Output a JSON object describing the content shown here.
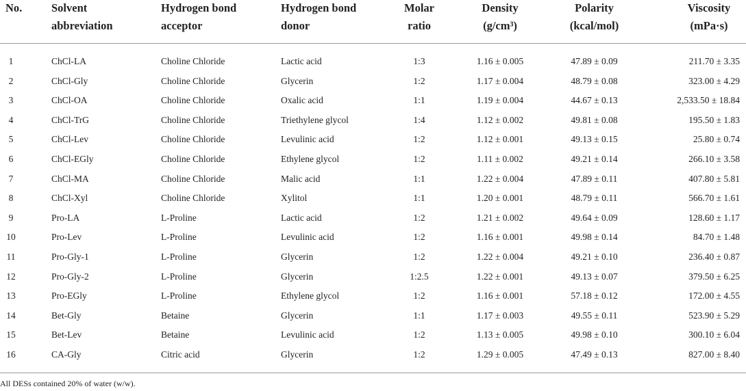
{
  "table": {
    "headers": [
      [
        "No."
      ],
      [
        "Solvent",
        "abbreviation"
      ],
      [
        "Hydrogen bond",
        "acceptor"
      ],
      [
        "Hydrogen bond",
        "donor"
      ],
      [
        "Molar",
        "ratio"
      ],
      [
        "Density",
        "(g/cm³)"
      ],
      [
        "Polarity",
        "(kcal/mol)"
      ],
      [
        "Viscosity",
        "(mPa·s)"
      ]
    ],
    "rows": [
      [
        "1",
        "ChCl-LA",
        "Choline Chloride",
        "Lactic acid",
        "1:3",
        "1.16 ± 0.005",
        "47.89 ± 0.09",
        "211.70 ± 3.35"
      ],
      [
        "2",
        "ChCl-Gly",
        "Choline Chloride",
        "Glycerin",
        "1:2",
        "1.17 ± 0.004",
        "48.79 ± 0.08",
        "323.00 ± 4.29"
      ],
      [
        "3",
        "ChCl-OA",
        "Choline Chloride",
        "Oxalic acid",
        "1:1",
        "1.19 ± 0.004",
        "44.67 ± 0.13",
        "2,533.50 ± 18.84"
      ],
      [
        "4",
        "ChCl-TrG",
        "Choline Chloride",
        "Triethylene glycol",
        "1:4",
        "1.12 ± 0.002",
        "49.81 ± 0.08",
        "195.50 ± 1.83"
      ],
      [
        "5",
        "ChCl-Lev",
        "Choline Chloride",
        "Levulinic acid",
        "1:2",
        "1.12 ± 0.001",
        "49.13 ± 0.15",
        "25.80 ± 0.74"
      ],
      [
        "6",
        "ChCl-EGly",
        "Choline Chloride",
        "Ethylene glycol",
        "1:2",
        "1.11 ± 0.002",
        "49.21 ± 0.14",
        "266.10 ± 3.58"
      ],
      [
        "7",
        "ChCl-MA",
        "Choline Chloride",
        "Malic acid",
        "1:1",
        "1.22 ± 0.004",
        "47.89 ± 0.11",
        "407.80 ± 5.81"
      ],
      [
        "8",
        "ChCl-Xyl",
        "Choline Chloride",
        "Xylitol",
        "1:1",
        "1.20 ± 0.001",
        "48.79 ± 0.11",
        "566.70 ± 1.61"
      ],
      [
        "9",
        "Pro-LA",
        "L-Proline",
        "Lactic acid",
        "1:2",
        "1.21 ± 0.002",
        "49.64 ± 0.09",
        "128.60 ± 1.17"
      ],
      [
        "10",
        "Pro-Lev",
        "L-Proline",
        "Levulinic acid",
        "1:2",
        "1.16 ± 0.001",
        "49.98 ± 0.14",
        "84.70 ± 1.48"
      ],
      [
        "11",
        "Pro-Gly-1",
        "L-Proline",
        "Glycerin",
        "1:2",
        "1.22 ± 0.004",
        "49.21 ± 0.10",
        "236.40 ± 0.87"
      ],
      [
        "12",
        "Pro-Gly-2",
        "L-Proline",
        "Glycerin",
        "1:2.5",
        "1.22 ± 0.001",
        "49.13 ± 0.07",
        "379.50 ± 6.25"
      ],
      [
        "13",
        "Pro-EGly",
        "L-Proline",
        "Ethylene glycol",
        "1:2",
        "1.16 ± 0.001",
        "57.18 ± 0.12",
        "172.00 ± 4.55"
      ],
      [
        "14",
        "Bet-Gly",
        "Betaine",
        "Glycerin",
        "1:1",
        "1.17 ± 0.003",
        "49.55 ± 0.11",
        "523.90 ± 5.29"
      ],
      [
        "15",
        "Bet-Lev",
        "Betaine",
        "Levulinic acid",
        "1:2",
        "1.13 ± 0.005",
        "49.98 ± 0.10",
        "300.10 ± 6.04"
      ],
      [
        "16",
        "CA-Gly",
        "Citric acid",
        "Glycerin",
        "1:2",
        "1.29 ± 0.005",
        "47.49 ± 0.13",
        "827.00 ± 8.40"
      ]
    ],
    "footnote": "All DESs contained 20% of water (w/w)."
  }
}
